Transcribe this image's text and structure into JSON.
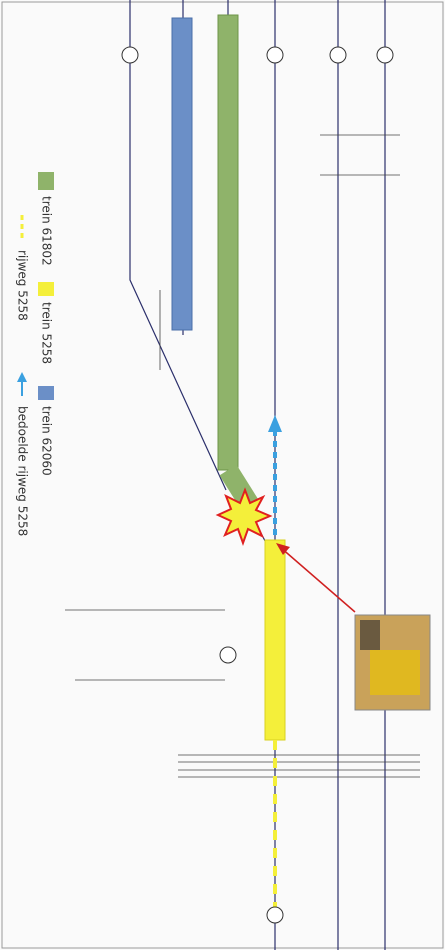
{
  "legend": {
    "items": [
      {
        "label": "trein 61802"
      },
      {
        "label": "trein 5258"
      },
      {
        "label": "trein 62060"
      },
      {
        "label": "rijweg 5258"
      },
      {
        "label": "bedoelde rijweg 5258"
      }
    ]
  }
}
